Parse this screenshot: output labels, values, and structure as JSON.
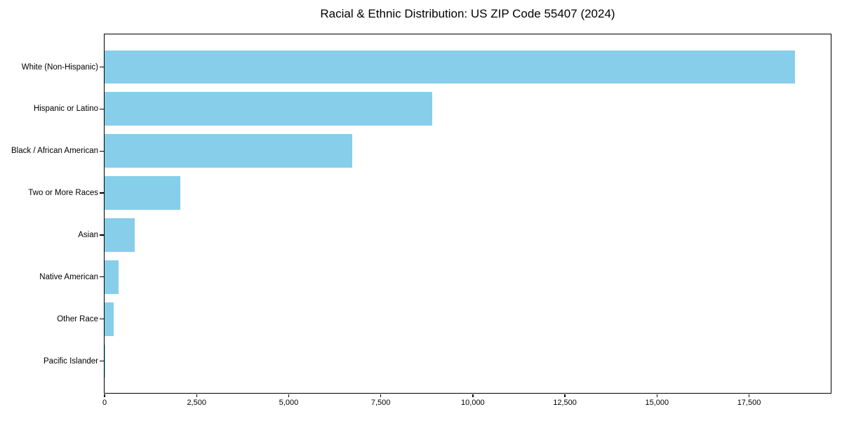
{
  "chart_data": {
    "type": "bar",
    "orientation": "horizontal",
    "title": "Racial & Ethnic Distribution: US ZIP Code 55407 (2024)",
    "categories": [
      "White (Non-Hispanic)",
      "Hispanic or Latino",
      "Black / African American",
      "Two or More Races",
      "Asian",
      "Native American",
      "Other Race",
      "Pacific Islander"
    ],
    "values": [
      18750,
      8890,
      6720,
      2050,
      810,
      390,
      240,
      25
    ],
    "xlabel": "",
    "ylabel": "",
    "xlim": [
      0,
      19700
    ],
    "x_ticks": [
      0,
      2500,
      5000,
      7500,
      10000,
      12500,
      15000,
      17500
    ],
    "x_tick_labels": [
      "0",
      "2,500",
      "5,000",
      "7,500",
      "10,000",
      "12,500",
      "15,000",
      "17,500"
    ],
    "grid": false,
    "legend": null,
    "colors": {
      "bar": "#87CEEB",
      "axis": "#000000",
      "text": "#000000",
      "background": "#FFFFFF"
    }
  }
}
